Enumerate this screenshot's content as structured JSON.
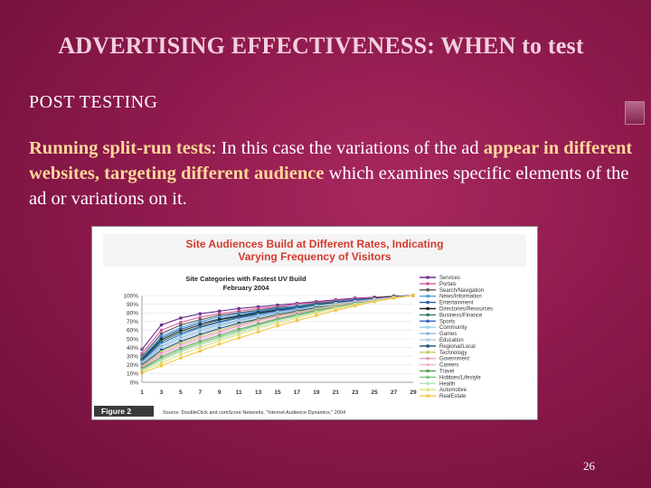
{
  "slide": {
    "title": "ADVERTISING EFFECTIVENESS: WHEN to test",
    "subheading": "POST TESTING",
    "body": {
      "term": "Running split-run tests",
      "seg1": ": In this case the variations of the ad ",
      "hl1": "appear in different websites, targeting different audience",
      "seg2": " which examines specific elements of the ad or variations on it."
    },
    "page_number": "26"
  },
  "figure": {
    "label": "Figure 2",
    "source": "Source: DoubleClick and comScore Networks, \"Internet Audience Dynamics,\" 2004"
  },
  "chart_data": {
    "type": "line",
    "title": "Site Audiences Build at Different Rates, Indicating Varying Frequency of Visitors",
    "subtitle": "Site Categories with Fastest UV Build",
    "subtitle2": "February 2004",
    "x": [
      1,
      3,
      5,
      7,
      9,
      11,
      13,
      15,
      17,
      19,
      21,
      23,
      25,
      27,
      29
    ],
    "ylim": [
      0,
      100
    ],
    "yticks": [
      0,
      10,
      20,
      30,
      40,
      50,
      60,
      70,
      80,
      90,
      100
    ],
    "legend_position": "right",
    "series": [
      {
        "name": "Services",
        "color": "#6a2e8c",
        "values": [
          38,
          66,
          74,
          79,
          82,
          85,
          87,
          89,
          91,
          93,
          95,
          97,
          98,
          99,
          100
        ]
      },
      {
        "name": "Portals",
        "color": "#d5579a",
        "values": [
          33,
          60,
          69,
          75,
          79,
          82,
          85,
          87,
          90,
          92,
          94,
          96,
          98,
          99,
          100
        ]
      },
      {
        "name": "Search/Navigation",
        "color": "#555555",
        "values": [
          30,
          56,
          66,
          72,
          77,
          80,
          83,
          86,
          88,
          91,
          93,
          95,
          97,
          99,
          100
        ]
      },
      {
        "name": "News/Information",
        "color": "#4aa0d8",
        "values": [
          28,
          53,
          63,
          70,
          75,
          79,
          82,
          85,
          88,
          90,
          93,
          95,
          97,
          99,
          100
        ]
      },
      {
        "name": "Entertainment",
        "color": "#2b5fa8",
        "values": [
          27,
          51,
          61,
          68,
          73,
          77,
          81,
          84,
          87,
          90,
          92,
          95,
          97,
          99,
          100
        ]
      },
      {
        "name": "Directories/Resources",
        "color": "#222222",
        "values": [
          26,
          49,
          59,
          66,
          72,
          76,
          80,
          83,
          86,
          89,
          92,
          94,
          97,
          99,
          100
        ]
      },
      {
        "name": "Business/Finance",
        "color": "#2e7d6b",
        "values": [
          25,
          47,
          57,
          64,
          70,
          75,
          79,
          82,
          86,
          89,
          91,
          94,
          96,
          98,
          100
        ]
      },
      {
        "name": "Sports",
        "color": "#3466c2",
        "values": [
          24,
          45,
          55,
          63,
          69,
          74,
          78,
          82,
          85,
          88,
          91,
          94,
          96,
          98,
          100
        ]
      },
      {
        "name": "Community",
        "color": "#9bd1e8",
        "values": [
          23,
          43,
          53,
          61,
          67,
          72,
          77,
          81,
          84,
          88,
          91,
          93,
          96,
          98,
          100
        ]
      },
      {
        "name": "Games",
        "color": "#8fb5df",
        "values": [
          22,
          41,
          51,
          59,
          66,
          71,
          76,
          80,
          84,
          87,
          90,
          93,
          96,
          98,
          100
        ]
      },
      {
        "name": "Education",
        "color": "#b3cde0",
        "values": [
          21,
          39,
          49,
          57,
          64,
          70,
          75,
          79,
          83,
          87,
          90,
          93,
          95,
          98,
          100
        ]
      },
      {
        "name": "Regional/Local",
        "color": "#1a4e73",
        "values": [
          20,
          37,
          47,
          55,
          62,
          68,
          73,
          78,
          82,
          86,
          89,
          92,
          95,
          98,
          100
        ]
      },
      {
        "name": "Technology",
        "color": "#c9c96a",
        "values": [
          19,
          35,
          45,
          53,
          60,
          66,
          72,
          77,
          81,
          85,
          89,
          92,
          95,
          98,
          100
        ]
      },
      {
        "name": "Government",
        "color": "#e0a0c0",
        "values": [
          18,
          33,
          43,
          51,
          58,
          65,
          71,
          76,
          80,
          84,
          88,
          92,
          95,
          98,
          100
        ]
      },
      {
        "name": "Careers",
        "color": "#f2b6d4",
        "values": [
          17,
          31,
          41,
          49,
          56,
          63,
          69,
          74,
          79,
          84,
          88,
          91,
          95,
          98,
          100
        ]
      },
      {
        "name": "Travel",
        "color": "#5aa55a",
        "values": [
          16,
          29,
          39,
          47,
          54,
          61,
          67,
          73,
          78,
          83,
          87,
          91,
          94,
          97,
          100
        ]
      },
      {
        "name": "Hobbies/Lifestyle",
        "color": "#7cc47c",
        "values": [
          15,
          27,
          37,
          45,
          52,
          59,
          66,
          72,
          77,
          82,
          86,
          90,
          94,
          97,
          100
        ]
      },
      {
        "name": "Health",
        "color": "#b7e3b7",
        "values": [
          14,
          25,
          35,
          43,
          50,
          57,
          64,
          70,
          76,
          81,
          86,
          90,
          94,
          97,
          100
        ]
      },
      {
        "name": "Automotive",
        "color": "#e3e07a",
        "values": [
          13,
          22,
          32,
          40,
          48,
          55,
          62,
          68,
          74,
          80,
          85,
          89,
          93,
          97,
          100
        ]
      },
      {
        "name": "RealEstate",
        "color": "#f2c744",
        "values": [
          11,
          19,
          28,
          36,
          44,
          51,
          58,
          65,
          71,
          77,
          83,
          88,
          93,
          97,
          100
        ]
      }
    ]
  }
}
